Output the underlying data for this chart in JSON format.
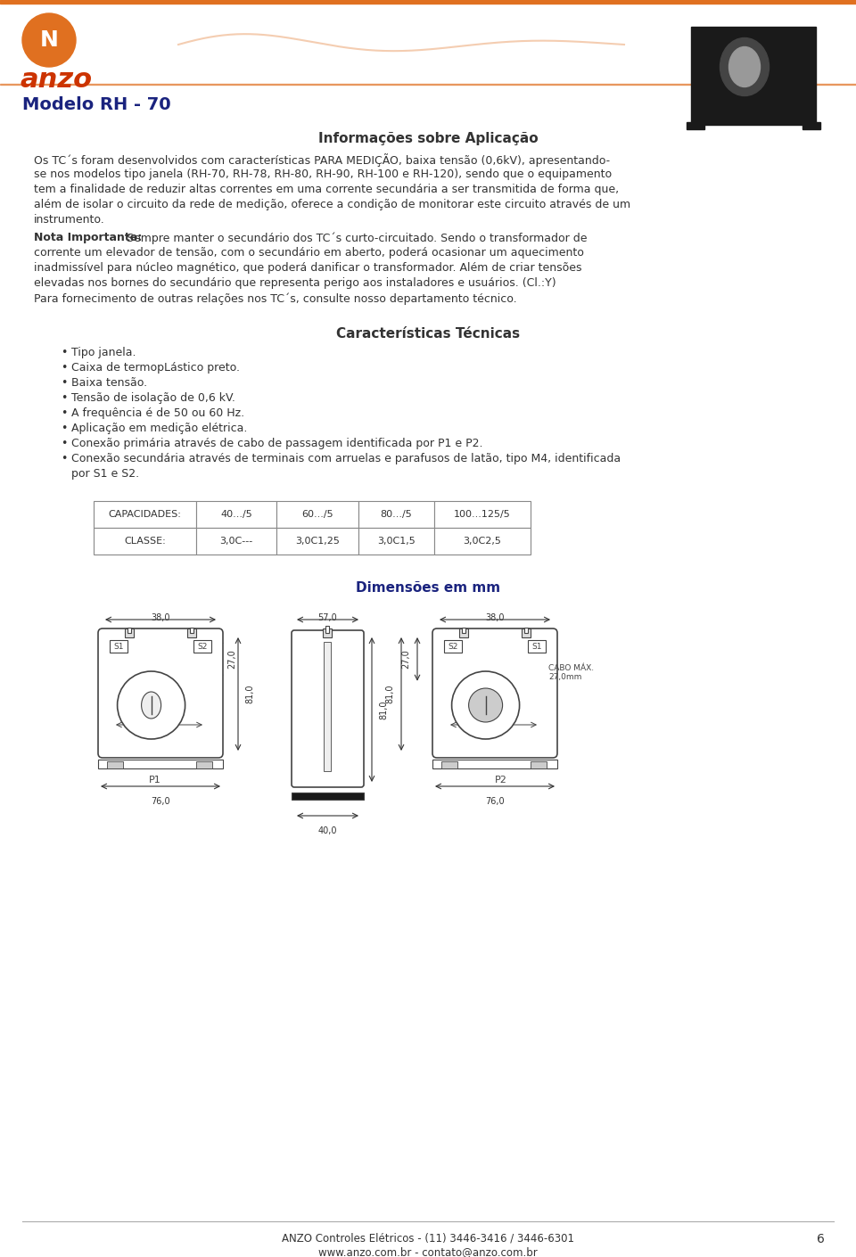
{
  "page_bg": "#ffffff",
  "text_color": "#1a237e",
  "dark_text": "#333333",
  "title_model": "Modelo RH - 70",
  "section1_title": "Informações sobre Aplicação",
  "body1_lines": [
    "Os TC´s foram desenvolvidos com características PARA MEDIÇÃO, baixa tensão (0,6kV), apresentando-",
    "se nos modelos tipo janela (RH-70, RH-78, RH-80, RH-90, RH-100 e RH-120), sendo que o equipamento",
    "tem a finalidade de reduzir altas correntes em uma corrente secundária a ser transmitida de forma que,",
    "além de isolar o circuito da rede de medição, oferece a condição de monitorar este circuito através de um",
    "instrumento."
  ],
  "nota_bold": "Nota Importante:",
  "nota_lines": [
    " Sempre manter o secundário dos TC´s curto-circuitado. Sendo o transformador de",
    "corrente um elevador de tensão, com o secundário em aberto, poderá ocasionar um aquecimento",
    "inadmissível para núcleo magnético, que poderá danificar o transformador. Além de criar tensões",
    "elevadas nos bornes do secundário que representa perigo aos instaladores e usuários. (Cl.:Y)",
    "Para fornecimento de outras relações nos TC´s, consulte nosso departamento técnico."
  ],
  "section2_title": "Características Técnicas",
  "bullet_items": [
    "Tipo janela.",
    "Caixa de termopLástico preto.",
    "Baixa tensão.",
    "Tensão de isolação de 0,6 kV.",
    "A frequência é de 50 ou 60 Hz.",
    "Aplicação em medição elétrica.",
    "Conexão primária através de cabo de passagem identificada por P1 e P2.",
    "Conexão secundária através de terminais com arruelas e parafusos de latão, tipo M4, identificada"
  ],
  "bullet_last_cont": "por S1 e S2.",
  "table_headers": [
    "CAPACIDADES:",
    "40.../5",
    "60.../5",
    "80.../5",
    "100...125/5"
  ],
  "table_row2": [
    "CLASSE:",
    "3,0C---",
    "3,0C1,25",
    "3,0C1,5",
    "3,0C2,5"
  ],
  "dim_title": "Dimensões em mm",
  "footer_line1": "ANZO Controles Elétricos - (11) 3446-3416 / 3446-6301",
  "footer_line2": "www.anzo.com.br - contato@anzo.com.br",
  "footer_page": "6",
  "orange_color": "#e07020",
  "draw_color": "#444444",
  "logo_text_color": "#cc3300"
}
